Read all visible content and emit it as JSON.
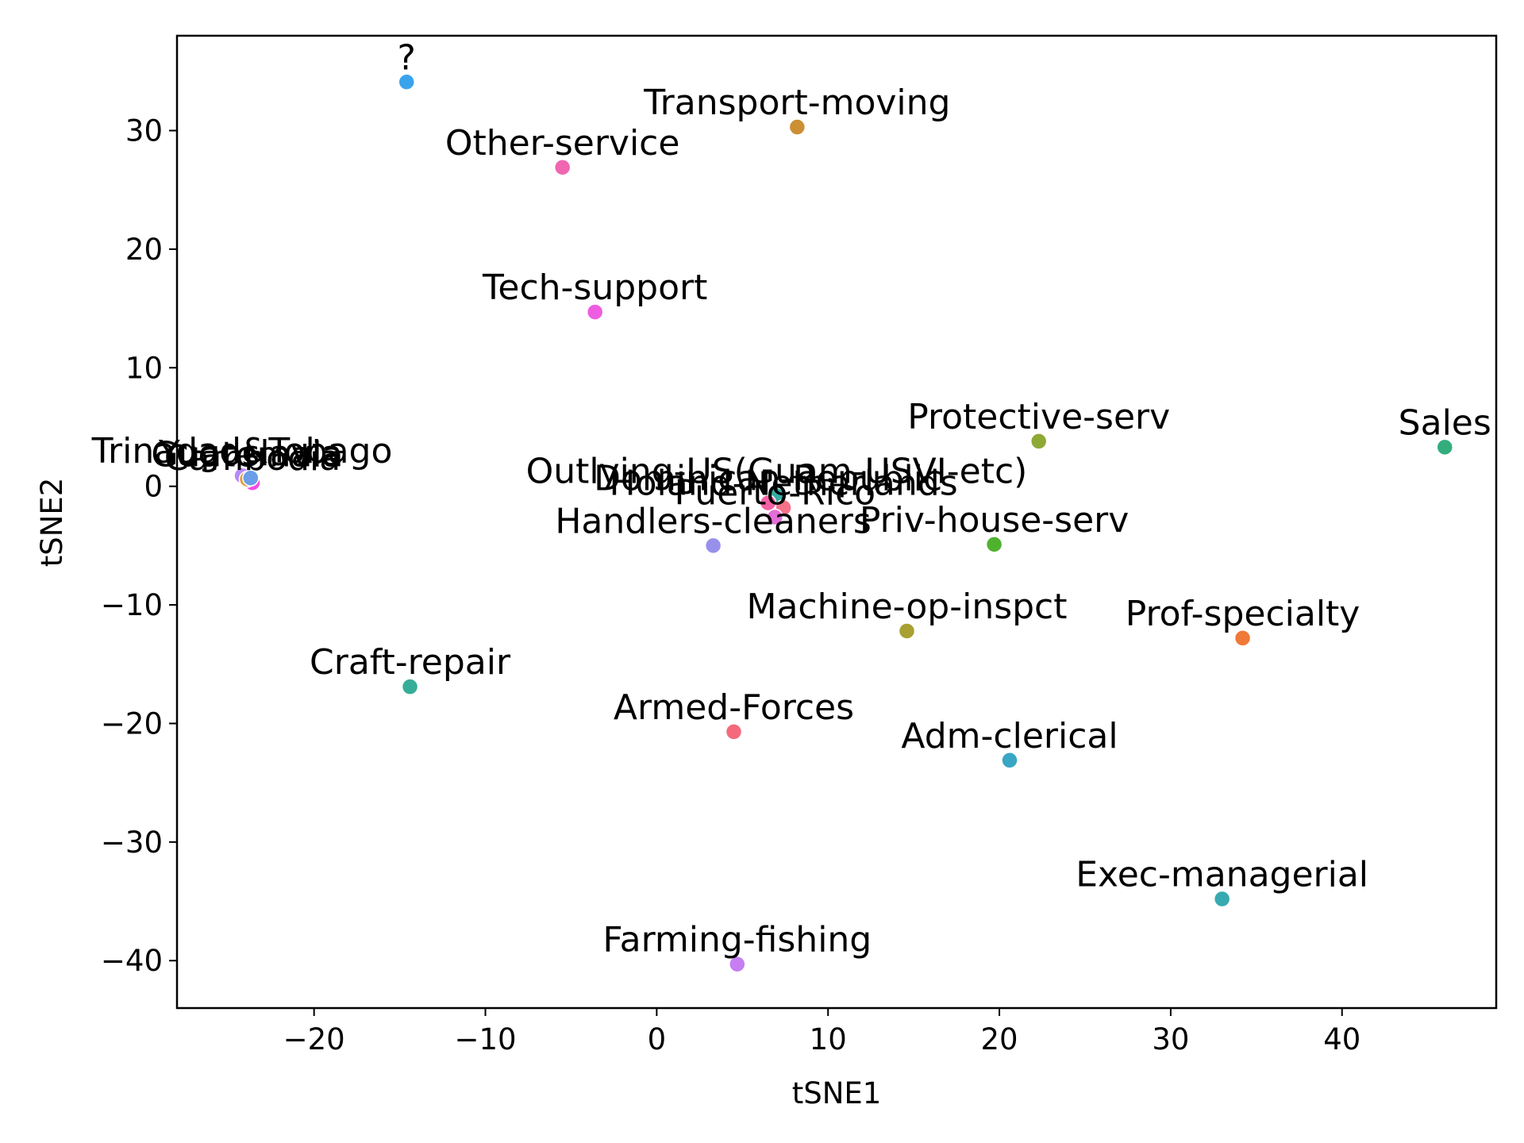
{
  "chart_data": {
    "type": "scatter",
    "title": "",
    "xlabel": "tSNE1",
    "ylabel": "tSNE2",
    "xlim": [
      -28,
      49
    ],
    "ylim": [
      -44,
      38
    ],
    "xticks": [
      -20,
      -10,
      0,
      10,
      20,
      30,
      40
    ],
    "yticks": [
      -40,
      -30,
      -20,
      -10,
      0,
      10,
      20,
      30
    ],
    "xtick_labels": [
      "−20",
      "−10",
      "0",
      "10",
      "20",
      "30",
      "40"
    ],
    "ytick_labels": [
      "−40",
      "−30",
      "−20",
      "−10",
      "0",
      "10",
      "20",
      "30"
    ],
    "grid": false,
    "legend": "none",
    "points": [
      {
        "label": "?",
        "x": -14.6,
        "y": 34.1,
        "color": "#3ba3ec"
      },
      {
        "label": "Transport-moving",
        "x": 8.2,
        "y": 30.3,
        "color": "#cc8f33"
      },
      {
        "label": "Other-service",
        "x": -5.5,
        "y": 26.9,
        "color": "#f066b0"
      },
      {
        "label": "Tech-support",
        "x": -3.6,
        "y": 14.7,
        "color": "#ee5ce0"
      },
      {
        "label": "Protective-serv",
        "x": 22.3,
        "y": 3.8,
        "color": "#8fa935"
      },
      {
        "label": "Sales",
        "x": 46.0,
        "y": 3.3,
        "color": "#33ad7c"
      },
      {
        "label": "Trinadad&Tobago",
        "x": -24.2,
        "y": 0.9,
        "color": "#b88af5"
      },
      {
        "label": "Cambodia",
        "x": -23.6,
        "y": 0.3,
        "color": "#f24be3"
      },
      {
        "label": "Guatemala",
        "x": -23.9,
        "y": 0.6,
        "color": "#e0a040"
      },
      {
        "label": "Yugoslavia",
        "x": -23.7,
        "y": 0.7,
        "color": "#6a9ee8"
      },
      {
        "label": "Outlying-US(Guam-USVI-etc)",
        "x": 7.0,
        "y": -0.8,
        "color": "#36ada4"
      },
      {
        "label": "Dominican-Republic",
        "x": 6.5,
        "y": -1.4,
        "color": "#f561a5"
      },
      {
        "label": "Holand-Netherlands",
        "x": 7.4,
        "y": -1.8,
        "color": "#f77189"
      },
      {
        "label": "Puerto-Rico",
        "x": 6.9,
        "y": -2.6,
        "color": "#e26fd6"
      },
      {
        "label": "Handlers-cleaners",
        "x": 3.3,
        "y": -5.0,
        "color": "#9990ec"
      },
      {
        "label": "Priv-house-serv",
        "x": 19.7,
        "y": -4.9,
        "color": "#4fb22f"
      },
      {
        "label": "Machine-op-inspct",
        "x": 14.6,
        "y": -12.2,
        "color": "#a8a032"
      },
      {
        "label": "Prof-specialty",
        "x": 34.2,
        "y": -12.8,
        "color": "#f07938"
      },
      {
        "label": "Craft-repair",
        "x": -14.4,
        "y": -16.9,
        "color": "#36ad98"
      },
      {
        "label": "Armed-Forces",
        "x": 4.5,
        "y": -20.7,
        "color": "#f46a7c"
      },
      {
        "label": "Adm-clerical",
        "x": 20.6,
        "y": -23.1,
        "color": "#38a6c4"
      },
      {
        "label": "Exec-managerial",
        "x": 33.0,
        "y": -34.8,
        "color": "#36aab0"
      },
      {
        "label": "Farming-fishing",
        "x": 4.7,
        "y": -40.3,
        "color": "#c67ef2"
      }
    ]
  }
}
